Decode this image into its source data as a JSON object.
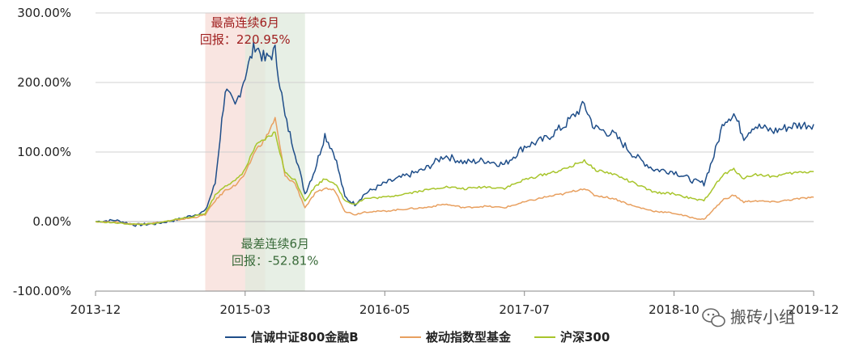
{
  "chart_data": {
    "type": "line",
    "title": "",
    "xlabel": "",
    "ylabel": "",
    "ylim": [
      -100,
      300
    ],
    "y_ticks": [
      "300.00%",
      "200.00%",
      "100.00%",
      "0.00%",
      "-100.00%"
    ],
    "y_tick_values": [
      300,
      200,
      100,
      0,
      -100
    ],
    "x_range": [
      "2013-12",
      "2019-12"
    ],
    "x_ticks": [
      {
        "label": "2013-12",
        "date": "2013-12"
      },
      {
        "label": "2015-03",
        "date": "2015-03"
      },
      {
        "label": "2016-05",
        "date": "2016-05"
      },
      {
        "label": "2017-07",
        "date": "2017-07"
      },
      {
        "label": "2018-10",
        "date": "2018-10"
      },
      {
        "label": "2019-12",
        "date": "2019-12"
      }
    ],
    "grid": "horizontal",
    "legend_position": "bottom",
    "series": [
      {
        "name": "信诚中证800金融B",
        "color": "#1f4e89",
        "points": [
          [
            "2013-12",
            0
          ],
          [
            "2014-02",
            2
          ],
          [
            "2014-04",
            -5
          ],
          [
            "2014-06",
            -3
          ],
          [
            "2014-08",
            2
          ],
          [
            "2014-10",
            10
          ],
          [
            "2014-11",
            15
          ],
          [
            "2014-12",
            55
          ],
          [
            "2015-01",
            190
          ],
          [
            "2015-02",
            165
          ],
          [
            "2015-03",
            210
          ],
          [
            "2015-04",
            255
          ],
          [
            "2015-05",
            232
          ],
          [
            "2015-06",
            245
          ],
          [
            "2015-07",
            150
          ],
          [
            "2015-08",
            100
          ],
          [
            "2015-09",
            40
          ],
          [
            "2015-10",
            75
          ],
          [
            "2015-11",
            125
          ],
          [
            "2015-12",
            95
          ],
          [
            "2016-01",
            35
          ],
          [
            "2016-02",
            25
          ],
          [
            "2016-03",
            40
          ],
          [
            "2016-05",
            55
          ],
          [
            "2016-07",
            65
          ],
          [
            "2016-09",
            75
          ],
          [
            "2016-11",
            95
          ],
          [
            "2017-01",
            85
          ],
          [
            "2017-03",
            88
          ],
          [
            "2017-05",
            82
          ],
          [
            "2017-07",
            108
          ],
          [
            "2017-09",
            118
          ],
          [
            "2017-11",
            138
          ],
          [
            "2018-01",
            168
          ],
          [
            "2018-02",
            135
          ],
          [
            "2018-04",
            125
          ],
          [
            "2018-06",
            95
          ],
          [
            "2018-08",
            75
          ],
          [
            "2018-10",
            72
          ],
          [
            "2018-12",
            58
          ],
          [
            "2019-01",
            55
          ],
          [
            "2019-02",
            95
          ],
          [
            "2019-03",
            145
          ],
          [
            "2019-04",
            155
          ],
          [
            "2019-05",
            122
          ],
          [
            "2019-06",
            138
          ],
          [
            "2019-08",
            130
          ],
          [
            "2019-10",
            138
          ],
          [
            "2019-12",
            140
          ]
        ]
      },
      {
        "name": "被动指数型基金",
        "color": "#e8a060",
        "points": [
          [
            "2013-12",
            0
          ],
          [
            "2014-02",
            -1
          ],
          [
            "2014-04",
            -4
          ],
          [
            "2014-06",
            -2
          ],
          [
            "2014-08",
            2
          ],
          [
            "2014-10",
            6
          ],
          [
            "2014-11",
            10
          ],
          [
            "2014-12",
            30
          ],
          [
            "2015-01",
            45
          ],
          [
            "2015-02",
            52
          ],
          [
            "2015-03",
            68
          ],
          [
            "2015-04",
            102
          ],
          [
            "2015-05",
            118
          ],
          [
            "2015-06",
            148
          ],
          [
            "2015-07",
            65
          ],
          [
            "2015-08",
            55
          ],
          [
            "2015-09",
            20
          ],
          [
            "2015-10",
            40
          ],
          [
            "2015-11",
            48
          ],
          [
            "2015-12",
            45
          ],
          [
            "2016-01",
            15
          ],
          [
            "2016-02",
            10
          ],
          [
            "2016-03",
            14
          ],
          [
            "2016-05",
            15
          ],
          [
            "2016-07",
            18
          ],
          [
            "2016-09",
            20
          ],
          [
            "2016-11",
            25
          ],
          [
            "2017-01",
            20
          ],
          [
            "2017-03",
            22
          ],
          [
            "2017-05",
            20
          ],
          [
            "2017-07",
            28
          ],
          [
            "2017-09",
            35
          ],
          [
            "2017-11",
            40
          ],
          [
            "2018-01",
            48
          ],
          [
            "2018-02",
            38
          ],
          [
            "2018-04",
            33
          ],
          [
            "2018-06",
            22
          ],
          [
            "2018-08",
            15
          ],
          [
            "2018-10",
            12
          ],
          [
            "2018-12",
            5
          ],
          [
            "2019-01",
            3
          ],
          [
            "2019-02",
            18
          ],
          [
            "2019-03",
            32
          ],
          [
            "2019-04",
            38
          ],
          [
            "2019-05",
            28
          ],
          [
            "2019-06",
            30
          ],
          [
            "2019-08",
            28
          ],
          [
            "2019-10",
            32
          ],
          [
            "2019-12",
            35
          ]
        ]
      },
      {
        "name": "沪深300",
        "color": "#a8c52c",
        "points": [
          [
            "2013-12",
            0
          ],
          [
            "2014-02",
            -2
          ],
          [
            "2014-04",
            -4
          ],
          [
            "2014-06",
            -3
          ],
          [
            "2014-08",
            3
          ],
          [
            "2014-10",
            8
          ],
          [
            "2014-11",
            12
          ],
          [
            "2014-12",
            38
          ],
          [
            "2015-01",
            52
          ],
          [
            "2015-02",
            58
          ],
          [
            "2015-03",
            75
          ],
          [
            "2015-04",
            108
          ],
          [
            "2015-05",
            118
          ],
          [
            "2015-06",
            128
          ],
          [
            "2015-07",
            70
          ],
          [
            "2015-08",
            60
          ],
          [
            "2015-09",
            30
          ],
          [
            "2015-10",
            50
          ],
          [
            "2015-11",
            62
          ],
          [
            "2015-12",
            55
          ],
          [
            "2016-01",
            30
          ],
          [
            "2016-02",
            25
          ],
          [
            "2016-03",
            33
          ],
          [
            "2016-05",
            35
          ],
          [
            "2016-07",
            40
          ],
          [
            "2016-09",
            45
          ],
          [
            "2016-11",
            50
          ],
          [
            "2017-01",
            47
          ],
          [
            "2017-03",
            50
          ],
          [
            "2017-05",
            48
          ],
          [
            "2017-07",
            60
          ],
          [
            "2017-09",
            68
          ],
          [
            "2017-11",
            75
          ],
          [
            "2018-01",
            88
          ],
          [
            "2018-02",
            75
          ],
          [
            "2018-04",
            68
          ],
          [
            "2018-06",
            55
          ],
          [
            "2018-08",
            42
          ],
          [
            "2018-10",
            40
          ],
          [
            "2018-12",
            32
          ],
          [
            "2019-01",
            30
          ],
          [
            "2019-02",
            50
          ],
          [
            "2019-03",
            68
          ],
          [
            "2019-04",
            75
          ],
          [
            "2019-05",
            62
          ],
          [
            "2019-06",
            68
          ],
          [
            "2019-08",
            65
          ],
          [
            "2019-10",
            70
          ],
          [
            "2019-12",
            72
          ]
        ]
      }
    ],
    "shaded_regions": [
      {
        "name": "best-6m",
        "start": "2014-11",
        "end": "2015-05",
        "color": "#f7dcd7"
      },
      {
        "name": "worst-6m",
        "start": "2015-03",
        "end": "2015-09",
        "color": "#dfeadc"
      }
    ],
    "annotations": [
      {
        "name": "best-6m",
        "lines": [
          "最高连续6月",
          "回报：220.95%"
        ],
        "color": "#a02020",
        "date": "2015-03",
        "value": 280
      },
      {
        "name": "worst-6m",
        "lines": [
          "最差连续6月",
          "回报：-52.81%"
        ],
        "color": "#3a6b3a",
        "date": "2015-06",
        "value": -38
      }
    ]
  },
  "watermark": {
    "text": "搬砖小组",
    "icon": "wechat-icon"
  }
}
